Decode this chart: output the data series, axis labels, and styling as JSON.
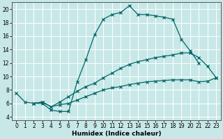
{
  "xlabel": "Humidex (Indice chaleur)",
  "bg_color": "#c8e8e8",
  "grid_color": "#ffffff",
  "line_color": "#006666",
  "xlim": [
    -0.5,
    23.5
  ],
  "ylim": [
    3.5,
    21
  ],
  "xticks": [
    0,
    1,
    2,
    3,
    4,
    5,
    6,
    7,
    8,
    9,
    10,
    11,
    12,
    13,
    14,
    15,
    16,
    17,
    18,
    19,
    20,
    21,
    22,
    23
  ],
  "yticks": [
    4,
    6,
    8,
    10,
    12,
    14,
    16,
    18,
    20
  ],
  "line1_x": [
    0,
    1,
    2,
    3,
    4,
    5,
    6,
    7,
    8,
    9,
    10,
    11,
    12,
    13,
    14,
    15,
    16,
    17,
    18,
    19,
    20,
    21
  ],
  "line1_y": [
    7.5,
    6.2,
    6.0,
    6.0,
    5.0,
    4.8,
    4.8,
    9.2,
    12.5,
    16.2,
    18.5,
    19.2,
    19.5,
    20.5,
    19.2,
    19.2,
    19.0,
    18.8,
    18.5,
    15.5,
    13.8,
    12.0
  ],
  "line2_x": [
    2,
    3,
    4,
    5,
    6,
    7,
    8,
    9,
    10,
    11,
    12,
    13,
    14,
    15,
    16,
    17,
    18,
    19,
    20,
    21,
    22,
    23
  ],
  "line2_y": [
    6.0,
    6.2,
    5.5,
    6.2,
    7.0,
    7.8,
    8.5,
    9.0,
    9.8,
    10.5,
    11.2,
    11.8,
    12.2,
    12.5,
    12.8,
    13.0,
    13.2,
    13.5,
    13.5,
    12.8,
    11.5,
    9.8
  ],
  "line3_x": [
    2,
    3,
    4,
    5,
    6,
    7,
    8,
    9,
    10,
    11,
    12,
    13,
    14,
    15,
    16,
    17,
    18,
    19,
    20,
    21,
    22,
    23
  ],
  "line3_y": [
    6.0,
    6.2,
    5.5,
    5.8,
    6.0,
    6.5,
    7.0,
    7.5,
    8.0,
    8.3,
    8.5,
    8.8,
    9.0,
    9.2,
    9.3,
    9.4,
    9.5,
    9.5,
    9.5,
    9.2,
    9.3,
    9.8
  ],
  "tick_fontsize": 5.5,
  "xlabel_fontsize": 6.5
}
